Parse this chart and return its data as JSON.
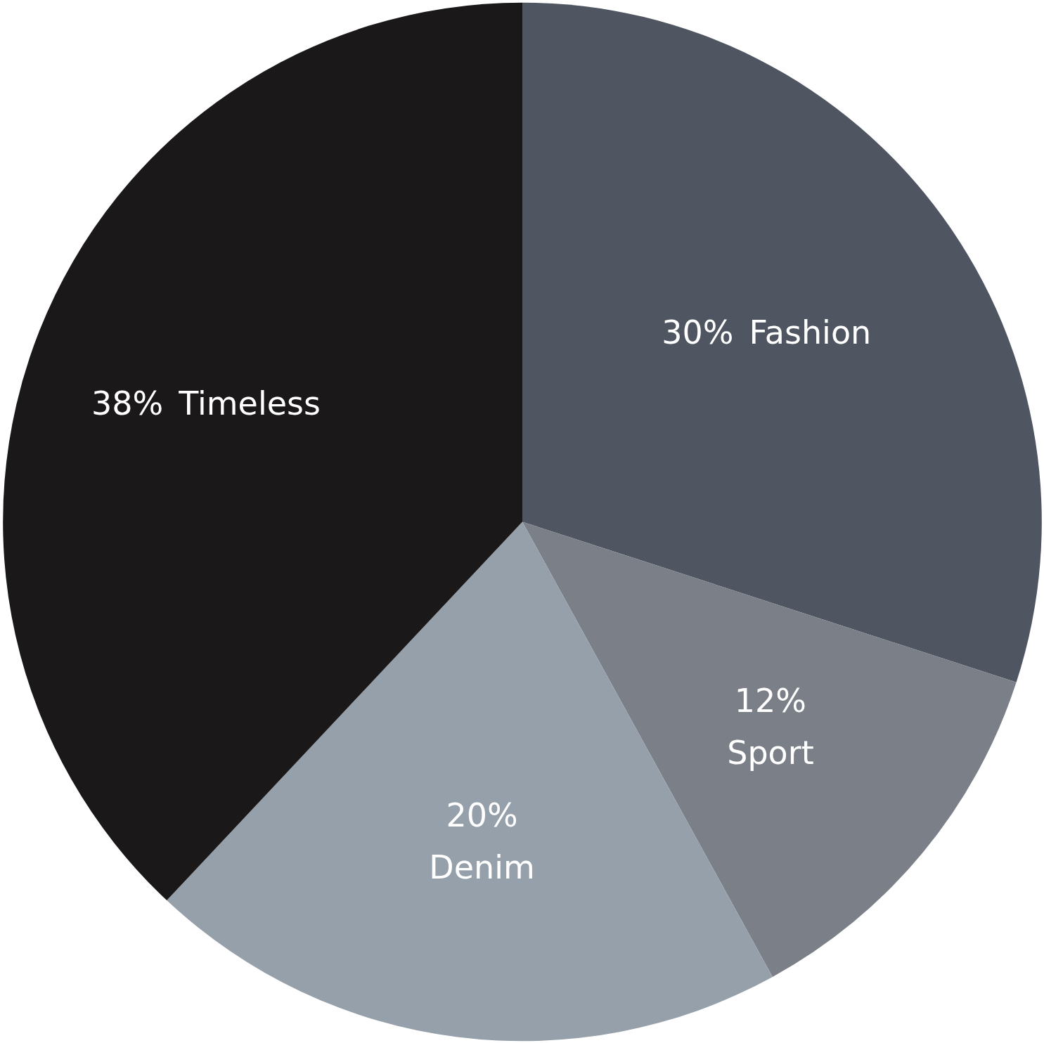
{
  "chart_data": {
    "type": "pie",
    "categories": [
      "Fashion",
      "Sport",
      "Denim",
      "Timeless"
    ],
    "values": [
      30,
      12,
      20,
      38
    ],
    "colors": [
      "#505661",
      "#7a7f88",
      "#96a0ab",
      "#1a1819"
    ],
    "value_labels": [
      "30%",
      "12%",
      "20%",
      "38%"
    ]
  }
}
